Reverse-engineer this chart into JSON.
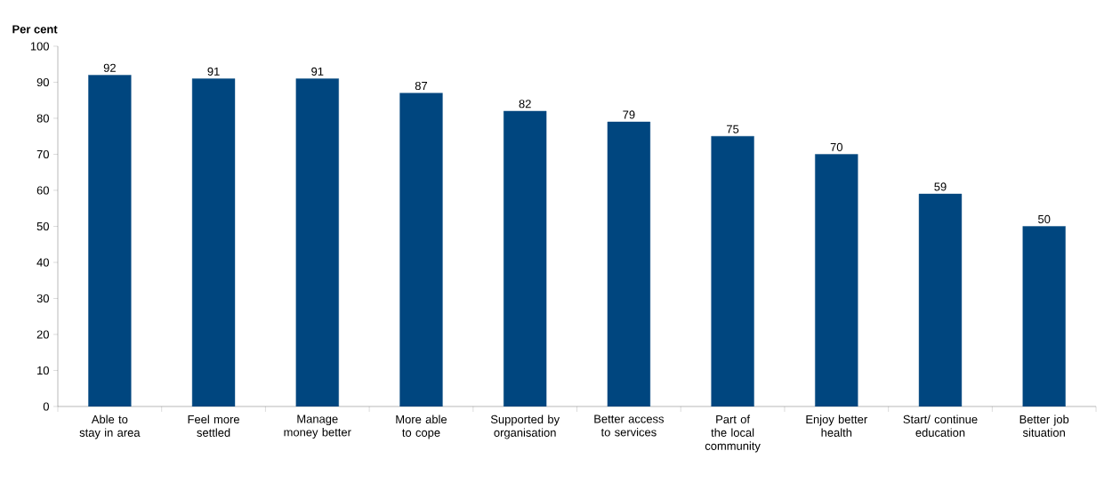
{
  "chart_data": {
    "type": "bar",
    "ylabel": "Per cent",
    "categories": [
      "Able to stay in area",
      "Feel more settled",
      "Manage money better",
      "More able to cope",
      "Supported by organisation",
      "Better access to services",
      "Part of the local community",
      "Enjoy better health",
      "Start/ continue education",
      "Better job situation"
    ],
    "values": [
      92,
      91,
      91,
      87,
      82,
      79,
      75,
      70,
      59,
      50
    ],
    "color": "#00467f",
    "ylim": [
      0,
      100
    ],
    "yticks": [
      0,
      10,
      20,
      30,
      40,
      50,
      60,
      70,
      80,
      90,
      100
    ],
    "data_labels": true
  }
}
